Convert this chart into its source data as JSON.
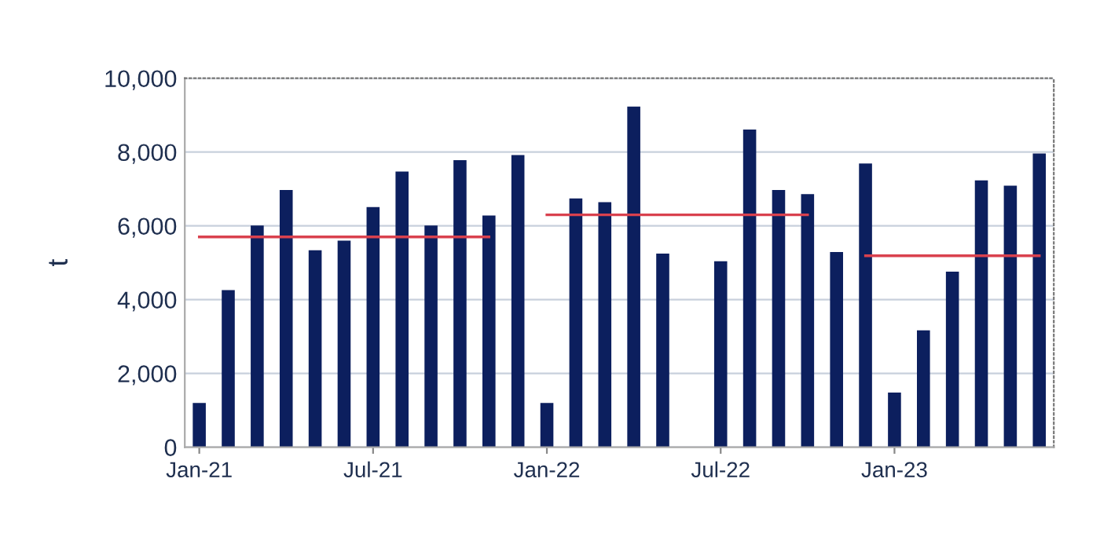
{
  "chart_data": {
    "type": "bar",
    "ylabel": "t",
    "categories": [
      "Jan-21",
      null,
      null,
      null,
      null,
      null,
      "Jul-21",
      null,
      null,
      null,
      null,
      null,
      "Jan-22",
      null,
      null,
      null,
      null,
      null,
      "Jul-22",
      null,
      null,
      null,
      null,
      null,
      "Jan-23",
      null,
      null,
      null,
      null,
      null
    ],
    "series": [
      {
        "color": "#0c1f5e",
        "values": [
          1200,
          4260,
          6010,
          6970,
          5340,
          5600,
          6510,
          7470,
          6010,
          7780,
          6280,
          7920,
          1200,
          6740,
          6640,
          9230,
          5250,
          null,
          5040,
          8610,
          6970,
          6860,
          5290,
          7690,
          1480,
          3170,
          4760,
          7230,
          7090,
          7960
        ]
      },
      {
        "type": "line",
        "color": "#d9414e",
        "values": [
          5700,
          5700,
          5700,
          5700,
          5700,
          5700,
          5700,
          5700,
          5700,
          5700,
          5700,
          null,
          null,
          null,
          null,
          null,
          null,
          null,
          null,
          null,
          null,
          null,
          null,
          null,
          null,
          null,
          null,
          null,
          null,
          null
        ]
      },
      {
        "type": "line",
        "color": "#d9414e",
        "values": [
          null,
          null,
          null,
          null,
          null,
          null,
          null,
          null,
          null,
          null,
          null,
          null,
          6300,
          6300,
          6300,
          6300,
          6300,
          6300,
          6300,
          6300,
          6300,
          6300,
          null,
          null,
          null,
          null,
          null,
          null,
          null,
          null
        ]
      },
      {
        "type": "line",
        "color": "#d9414e",
        "values": [
          null,
          null,
          null,
          null,
          null,
          null,
          null,
          null,
          null,
          null,
          null,
          null,
          null,
          null,
          null,
          null,
          null,
          null,
          null,
          null,
          null,
          null,
          null,
          5190,
          5190,
          5190,
          5190,
          5190,
          5190,
          5190
        ]
      }
    ],
    "ylim": [
      0,
      10000
    ],
    "yticks": [
      {
        "value": 0,
        "label": "0"
      },
      {
        "value": 2000,
        "label": "2,000"
      },
      {
        "value": 4000,
        "label": "4,000"
      },
      {
        "value": 6000,
        "label": "6,000"
      },
      {
        "value": 8000,
        "label": "8,000"
      },
      {
        "value": 10000,
        "label": "10,000"
      }
    ],
    "grid": "y",
    "legend": false
  }
}
